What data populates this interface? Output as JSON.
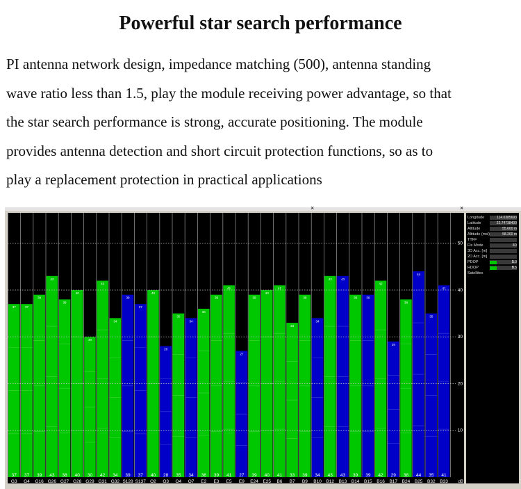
{
  "heading": "Powerful star search performance",
  "description_lines": [
    "PI antenna network design, impedance matching (500), antenna standing",
    "wave ratio less than 1.5, play the module receiving power advantage, so that",
    " the star search performance is strong, accurate positioning. The module",
    "provides antenna detection and short circuit protection functions, so as to",
    "play a replacement protection in practical applications"
  ],
  "window": {
    "close_glyph": "×"
  },
  "chart_data": {
    "type": "bar",
    "ylim": [
      0,
      50
    ],
    "y_ticks": [
      10,
      20,
      30,
      40,
      50
    ],
    "categories": [
      "G3",
      "G4",
      "G16",
      "G26",
      "G27",
      "G28",
      "G29",
      "G31",
      "G32",
      "S128",
      "S137",
      "O2",
      "O3",
      "O4",
      "O7",
      "E2",
      "E3",
      "E5",
      "E9",
      "E24",
      "E25",
      "B6",
      "B7",
      "B9",
      "B10",
      "B12",
      "B13",
      "B14",
      "B15",
      "B16",
      "B17",
      "B24",
      "B25",
      "B32",
      "B33"
    ],
    "values": [
      37,
      37,
      39,
      43,
      38,
      40,
      30,
      42,
      34,
      39,
      37,
      40,
      28,
      35,
      34,
      36,
      39,
      41,
      27,
      39,
      40,
      41,
      33,
      39,
      34,
      43,
      43,
      39,
      39,
      42,
      29,
      38,
      44,
      35,
      41
    ],
    "constellation": [
      "gps",
      "gps",
      "gps",
      "gps",
      "gps",
      "gps",
      "gps",
      "gps",
      "gps",
      "sbas",
      "sbas",
      "gps",
      "sbas",
      "gps",
      "sbas",
      "gps",
      "gps",
      "gps",
      "sbas",
      "gps",
      "gps",
      "gps",
      "gps",
      "gps",
      "sbas",
      "gps",
      "sbas",
      "gps",
      "sbas",
      "gps",
      "sbas",
      "gps",
      "sbas",
      "sbas",
      "sbas"
    ],
    "colors": {
      "gps": "#00c800",
      "sbas": "#0000c8",
      "background": "#000000",
      "grid": "#9a9a9a"
    },
    "axis_unit": "dB"
  },
  "side_panel": {
    "rows": [
      {
        "label": "Longitude",
        "value": "114.0385693"
      },
      {
        "label": "Latitude",
        "value": "22.74738400"
      },
      {
        "label": "Altitude",
        "value": "55.600 m"
      },
      {
        "label": "Altitude (msl)",
        "value": "58.200 m"
      },
      {
        "label": "TTFF",
        "value": ""
      },
      {
        "label": "Fix Mode",
        "value": "3D"
      },
      {
        "label": "3D Acc. [m]",
        "value": ""
      },
      {
        "label": "2D Acc. [m]",
        "value": ""
      },
      {
        "label": "PDOP",
        "value": "1.0"
      },
      {
        "label": "HDOP",
        "value": "0.5"
      },
      {
        "label": "Satellites",
        "value": ""
      }
    ],
    "pdop_count": "5",
    "hdop_count": "5"
  }
}
